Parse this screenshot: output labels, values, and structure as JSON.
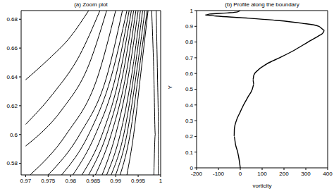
{
  "chart_data": [
    {
      "type": "line",
      "title": "(a) Zoom plot",
      "color": "#000000",
      "xlim": [
        0.969,
        1
      ],
      "xticks": [
        0.97,
        0.975,
        0.98,
        0.985,
        0.99,
        0.995,
        1
      ],
      "ylim": [
        0.572,
        0.686
      ],
      "yticks": [
        0.58,
        0.6,
        0.62,
        0.64,
        0.66,
        0.68
      ],
      "series": [
        {
          "x": [
            0.97,
            0.975,
            0.98,
            0.984
          ],
          "values": [
            0.638,
            0.652,
            0.668,
            0.686
          ]
        },
        {
          "x": [
            0.97,
            0.976,
            0.982,
            0.9865
          ],
          "values": [
            0.607,
            0.628,
            0.655,
            0.686
          ]
        },
        {
          "x": [
            0.97,
            0.978,
            0.984,
            0.988
          ],
          "values": [
            0.592,
            0.617,
            0.648,
            0.686
          ]
        },
        {
          "x": [
            0.971,
            0.979,
            0.986,
            0.99
          ],
          "values": [
            0.572,
            0.6,
            0.64,
            0.686
          ]
        },
        {
          "x": [
            0.975,
            0.982,
            0.988,
            0.9915
          ],
          "values": [
            0.572,
            0.6,
            0.64,
            0.686
          ]
        },
        {
          "x": [
            0.978,
            0.984,
            0.989,
            0.9925
          ],
          "values": [
            0.572,
            0.6,
            0.64,
            0.686
          ]
        },
        {
          "x": [
            0.9805,
            0.9855,
            0.99,
            0.993
          ],
          "values": [
            0.572,
            0.6,
            0.64,
            0.686
          ]
        },
        {
          "x": [
            0.9825,
            0.987,
            0.9908,
            0.9935
          ],
          "values": [
            0.572,
            0.6,
            0.64,
            0.686
          ]
        },
        {
          "x": [
            0.984,
            0.988,
            0.9915,
            0.994
          ],
          "values": [
            0.572,
            0.6,
            0.64,
            0.686
          ]
        },
        {
          "x": [
            0.9855,
            0.989,
            0.9922,
            0.9945
          ],
          "values": [
            0.572,
            0.6,
            0.64,
            0.686
          ]
        },
        {
          "x": [
            0.987,
            0.99,
            0.9928,
            0.995
          ],
          "values": [
            0.572,
            0.6,
            0.64,
            0.686
          ]
        },
        {
          "x": [
            0.988,
            0.991,
            0.9935,
            0.9955
          ],
          "values": [
            0.572,
            0.6,
            0.64,
            0.686
          ]
        },
        {
          "x": [
            0.989,
            0.9918,
            0.994,
            0.996
          ],
          "values": [
            0.572,
            0.6,
            0.64,
            0.686
          ]
        },
        {
          "x": [
            0.99,
            0.9925,
            0.9945,
            0.9965
          ],
          "values": [
            0.572,
            0.6,
            0.64,
            0.686
          ]
        },
        {
          "x": [
            0.991,
            0.9932,
            0.995,
            0.997
          ],
          "values": [
            0.572,
            0.6,
            0.64,
            0.686
          ]
        },
        {
          "x": [
            0.9925,
            0.994,
            0.9955,
            0.9972
          ],
          "values": [
            0.572,
            0.6,
            0.64,
            0.686
          ]
        },
        {
          "x": [
            0.9985,
            0.9988,
            0.9985,
            0.998
          ],
          "values": [
            0.572,
            0.6,
            0.64,
            0.686
          ]
        },
        {
          "x": [
            0.9995,
            0.9995,
            0.9993,
            0.999
          ],
          "values": [
            0.572,
            0.6,
            0.64,
            0.686
          ]
        }
      ]
    },
    {
      "type": "line",
      "title": "(b) Profile along the boundary",
      "color": "#000000",
      "x_label": "vorticity",
      "y_label": "Y",
      "xlim": [
        -200,
        400
      ],
      "xticks": [
        -200,
        -100,
        0,
        100,
        200,
        300,
        400
      ],
      "ylim": [
        0,
        1
      ],
      "yticks": [
        0,
        0.1,
        0.2,
        0.3,
        0.4,
        0.5,
        0.6,
        0.7,
        0.8,
        0.9,
        1
      ],
      "series": [
        {
          "x": [
            0,
            -5,
            -12,
            -22,
            -28,
            -27,
            -18,
            -2,
            15,
            35,
            55,
            62,
            58,
            62,
            80,
            120,
            180,
            250,
            310,
            360,
            380,
            385,
            360,
            280,
            150,
            0,
            -110,
            -160,
            -140,
            -60,
            -10,
            0
          ],
          "values": [
            0,
            0.05,
            0.1,
            0.15,
            0.2,
            0.25,
            0.3,
            0.35,
            0.4,
            0.45,
            0.5,
            0.53,
            0.56,
            0.59,
            0.62,
            0.66,
            0.7,
            0.75,
            0.8,
            0.84,
            0.86,
            0.875,
            0.9,
            0.92,
            0.94,
            0.955,
            0.965,
            0.972,
            0.978,
            0.985,
            0.993,
            1
          ]
        }
      ]
    }
  ]
}
